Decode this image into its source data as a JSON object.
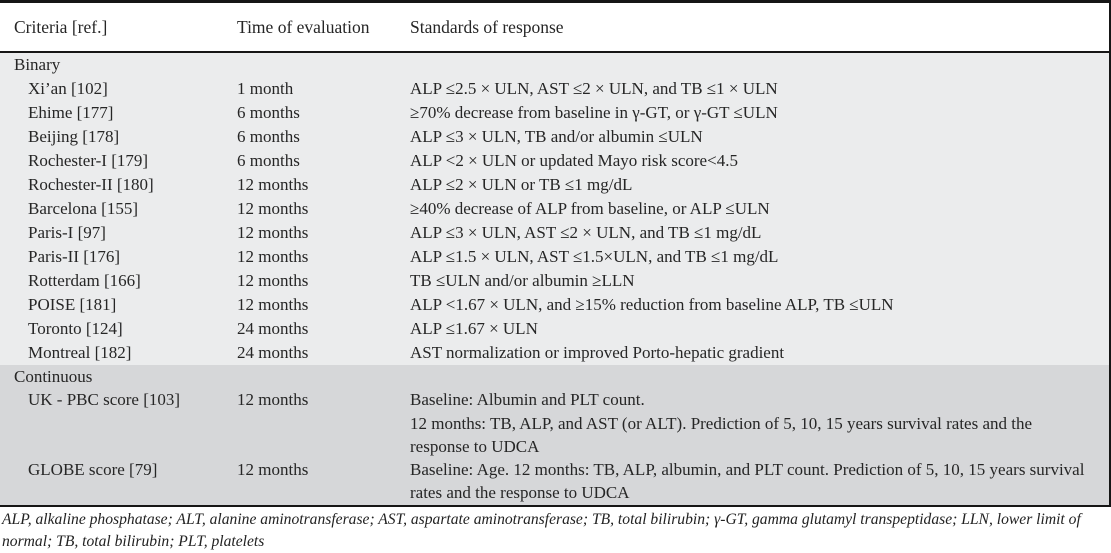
{
  "table": {
    "columns": [
      "Criteria [ref.]",
      "Time of evaluation",
      "Standards of response"
    ],
    "sections": [
      {
        "label": "Binary",
        "rows": [
          {
            "criteria": "Xi’an [102]",
            "time": "1 month",
            "standards": "ALP ≤2.5 × ULN, AST ≤2 × ULN, and TB ≤1 × ULN"
          },
          {
            "criteria": "Ehime [177]",
            "time": "6 months",
            "standards": "≥70% decrease from baseline in γ-GT, or γ-GT ≤ULN"
          },
          {
            "criteria": "Beijing [178]",
            "time": "6 months",
            "standards": "ALP ≤3 × ULN, TB and/or albumin ≤ULN"
          },
          {
            "criteria": "Rochester-I [179]",
            "time": "6 months",
            "standards": "ALP <2 × ULN or updated Mayo risk score<4.5"
          },
          {
            "criteria": "Rochester-II [180]",
            "time": "12 months",
            "standards": "ALP ≤2 × ULN or TB ≤1 mg/dL"
          },
          {
            "criteria": "Barcelona [155]",
            "time": "12 months",
            "standards": "≥40% decrease of ALP from baseline, or ALP ≤ULN"
          },
          {
            "criteria": "Paris-I [97]",
            "time": "12 months",
            "standards": "ALP ≤3 × ULN, AST ≤2 × ULN, and TB ≤1 mg/dL"
          },
          {
            "criteria": "Paris-II [176]",
            "time": "12 months",
            "standards": "ALP ≤1.5 × ULN, AST ≤1.5×ULN, and TB ≤1 mg/dL"
          },
          {
            "criteria": "Rotterdam [166]",
            "time": "12 months",
            "standards": "TB ≤ULN and/or albumin ≥LLN"
          },
          {
            "criteria": "POISE [181]",
            "time": "12 months",
            "standards": "ALP <1.67 × ULN, and ≥15% reduction from baseline ALP, TB ≤ULN"
          },
          {
            "criteria": "Toronto [124]",
            "time": "24 months",
            "standards": "ALP ≤1.67 × ULN"
          },
          {
            "criteria": "Montreal [182]",
            "time": "24 months",
            "standards": "AST normalization or improved Porto-hepatic gradient"
          }
        ]
      },
      {
        "label": "Continuous",
        "rows": [
          {
            "criteria": "UK - PBC score [103]",
            "time": "12 months",
            "standards": "Baseline: Albumin and PLT count.\n12 months: TB, ALP, and AST (or ALT). Prediction of 5, 10, 15 years survival rates and the response to UDCA"
          },
          {
            "criteria": "GLOBE score [79]",
            "time": "12 months",
            "standards": "Baseline: Age. 12 months: TB, ALP, albumin, and PLT count. Prediction of 5, 10, 15 years survival rates and the response to UDCA"
          }
        ]
      }
    ]
  },
  "footnote": "ALP, alkaline phosphatase; ALT, alanine aminotransferase; AST, aspartate aminotransferase; TB, total bilirubin; γ-GT, gamma glutamyl transpeptidase; LLN, lower limit of normal; TB, total bilirubin; PLT, platelets",
  "colors": {
    "binary_section_bg": "#ebeced",
    "continuous_section_bg": "#d6d7d9",
    "border": "#161616",
    "text": "#262626"
  }
}
